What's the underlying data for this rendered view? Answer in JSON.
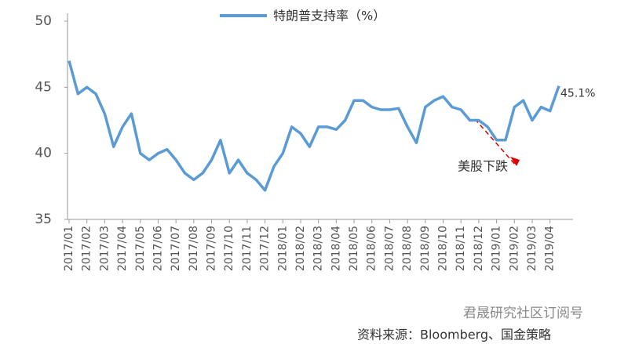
{
  "chart_data": {
    "type": "line",
    "series": [
      {
        "name": "特朗普支持率（%）",
        "color": "#5b9bd5",
        "values": [
          47,
          44.5,
          45,
          44.5,
          43,
          40.5,
          42,
          43,
          40,
          39.5,
          40,
          40.3,
          39.5,
          38.5,
          38,
          38.5,
          39.5,
          41,
          38.5,
          39.5,
          38.5,
          38,
          37.2,
          39,
          40,
          42,
          41.5,
          40.5,
          42,
          42,
          41.8,
          42.5,
          44,
          44,
          43.5,
          43.3,
          43.3,
          43.4,
          42,
          40.8,
          43.5,
          44,
          44.3,
          43.5,
          43.3,
          42.5,
          42.5,
          42,
          41,
          41,
          43.5,
          44,
          42.5,
          43.5,
          43.2,
          45.1
        ],
        "value_labels": [
          null,
          null,
          null,
          null,
          null,
          null,
          null,
          null,
          null,
          null,
          null,
          null,
          null,
          null,
          null,
          null,
          null,
          null,
          null,
          null,
          null,
          null,
          null,
          null,
          null,
          null,
          null,
          null,
          null,
          null,
          null,
          null,
          null,
          null,
          null,
          null,
          null,
          null,
          null,
          null,
          null,
          null,
          null,
          null,
          null,
          null,
          null,
          null,
          null,
          null,
          null,
          null,
          null,
          null,
          null,
          "45.1%"
        ]
      }
    ],
    "categories": [
      "2017/01",
      null,
      "2017/02",
      null,
      "2017/03",
      null,
      "2017/04",
      null,
      "2017/05",
      null,
      "2017/06",
      null,
      "2017/07",
      null,
      "2017/08",
      null,
      "2017/09",
      null,
      "2017/10",
      null,
      "2017/11",
      null,
      "2017/12",
      null,
      "2018/01",
      null,
      "2018/02",
      null,
      "2018/03",
      null,
      "2018/04",
      null,
      "2018/05",
      null,
      "2018/06",
      null,
      "2018/07",
      null,
      "2018/08",
      null,
      "2018/09",
      null,
      "2018/10",
      null,
      "2018/11",
      null,
      "2018/12",
      null,
      "2019/01",
      null,
      "2019/02",
      null,
      "2019/03",
      null,
      "2019/04",
      null
    ],
    "ylim": [
      35,
      50
    ],
    "yticks": [
      35,
      40,
      45,
      50
    ],
    "annotation": "美股下跌",
    "watermark": "君晟研究社区订阅号",
    "source": "资料来源：Bloomberg、国金策略"
  }
}
